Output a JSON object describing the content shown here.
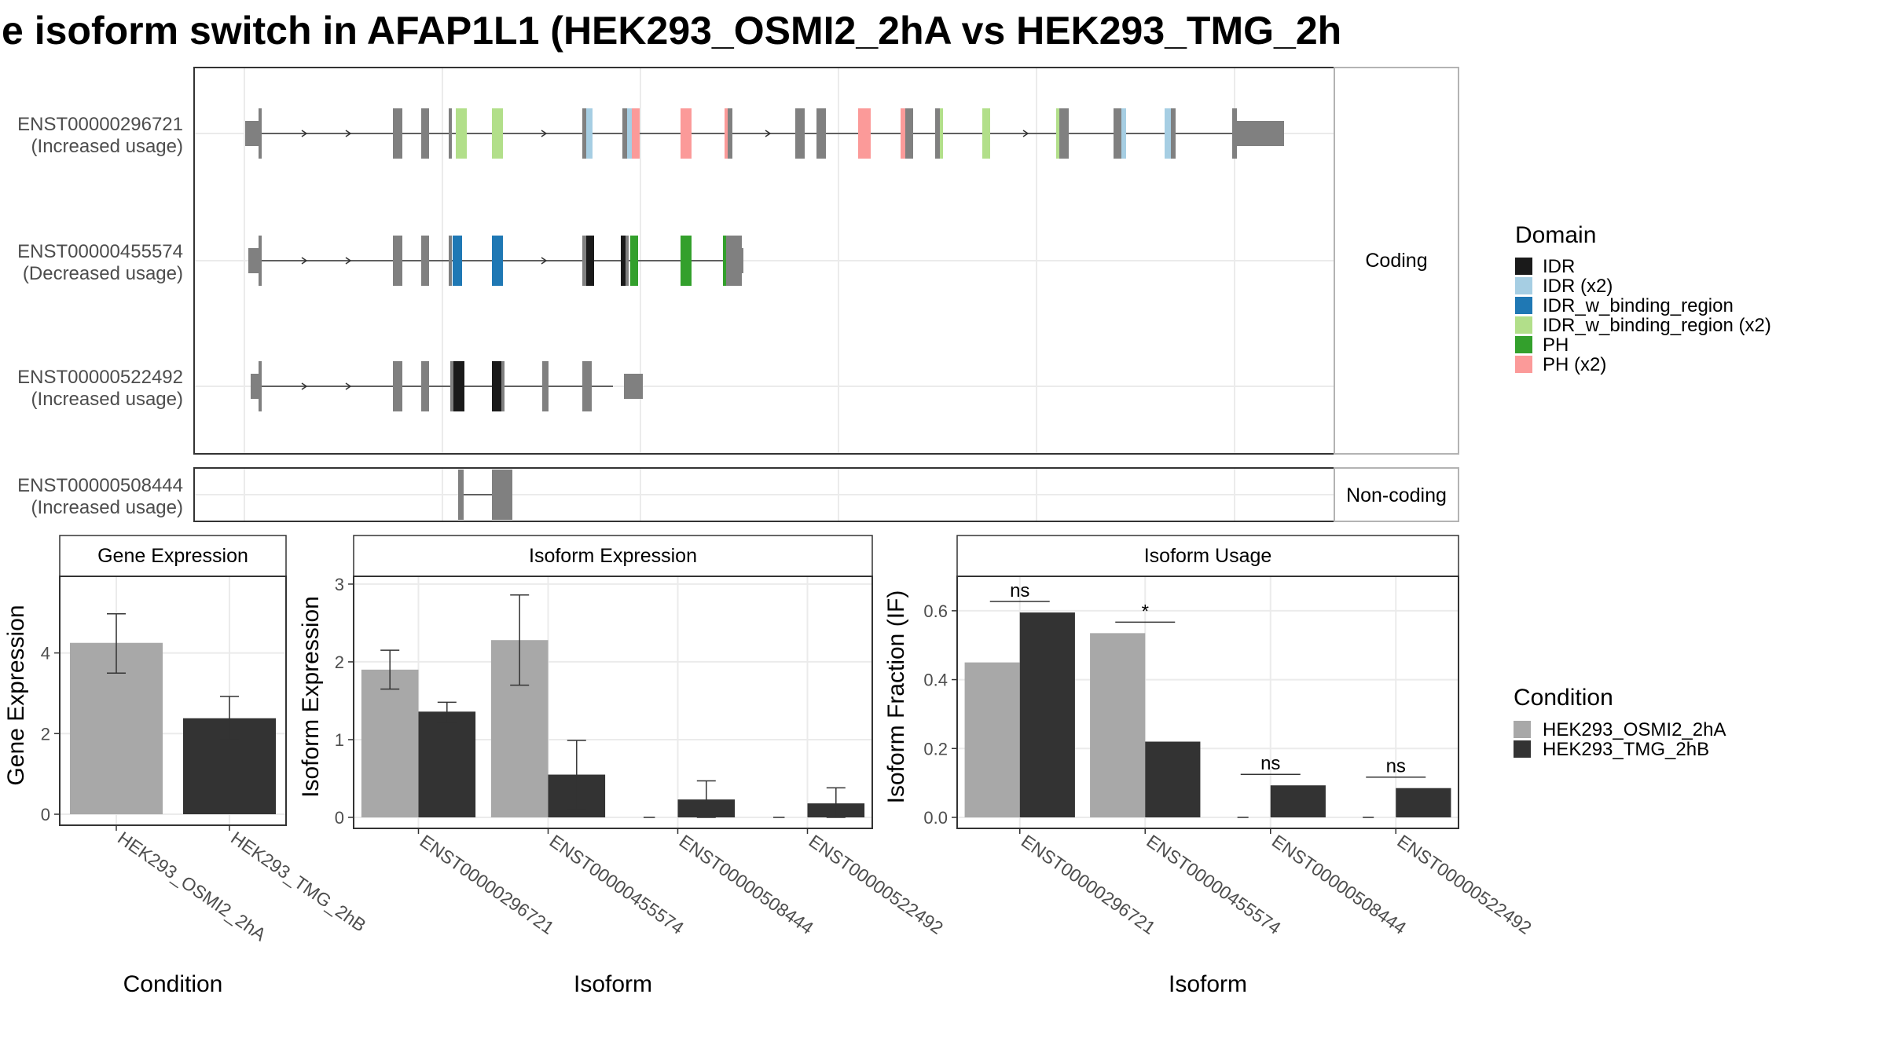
{
  "title": "e isoform switch in AFAP1L1 (HEK293_OSMI2_2hA vs HEK293_TMG_2h",
  "colors": {
    "exon": "#808080",
    "IDR": "#1a1a1a",
    "IDR (x2)": "#a6cee3",
    "IDR_w_binding_region": "#1f78b4",
    "IDR_w_binding_region (x2)": "#b2df8a",
    "PH": "#33a02c",
    "PH (x2)": "#fb9a99",
    "condA": "#a8a8a8",
    "condB": "#333333",
    "panel_border": "#333333",
    "strip_bg": "#ffffff",
    "grid": "#ebebeb"
  },
  "structure": {
    "coding_strip": "Coding",
    "noncoding_strip": "Non-coding",
    "isoforms": [
      {
        "id": "ENST00000296721",
        "usage": "(Increased usage)",
        "group": "Coding"
      },
      {
        "id": "ENST00000455574",
        "usage": "(Decreased usage)",
        "group": "Coding"
      },
      {
        "id": "ENST00000522492",
        "usage": "(Increased usage)",
        "group": "Coding"
      },
      {
        "id": "ENST00000508444",
        "usage": "(Increased usage)",
        "group": "Non-coding"
      }
    ],
    "legend": {
      "title": "Domain",
      "items": [
        "IDR",
        "IDR (x2)",
        "IDR_w_binding_region",
        "IDR_w_binding_region (x2)",
        "PH",
        "PH (x2)"
      ]
    }
  },
  "chart_data": [
    {
      "type": "bar",
      "strip": "Gene Expression",
      "xlabel": "Condition",
      "ylabel": "Gene Expression",
      "ylim": [
        0,
        5.9
      ],
      "yticks": [
        0,
        2,
        4
      ],
      "categories": [
        "HEK293_OSMI2_2hA",
        "HEK293_TMG_2hB"
      ],
      "values": [
        4.25,
        2.38
      ],
      "error_low": [
        3.5,
        1.85
      ],
      "error_high": [
        4.97,
        2.92
      ]
    },
    {
      "type": "bar",
      "strip": "Isoform Expression",
      "xlabel": "Isoform",
      "ylabel": "Isoform Expression",
      "ylim": [
        0,
        3.1
      ],
      "yticks": [
        0,
        1,
        2,
        3
      ],
      "categories": [
        "ENST00000296721",
        "ENST00000455574",
        "ENST00000508444",
        "ENST00000522492"
      ],
      "series": [
        {
          "name": "HEK293_OSMI2_2hA",
          "values": [
            1.9,
            2.28,
            0.0,
            0.0
          ],
          "error_low": [
            1.65,
            1.7,
            0.0,
            0.0
          ],
          "error_high": [
            2.15,
            2.86,
            0.0,
            0.0
          ]
        },
        {
          "name": "HEK293_TMG_2hB",
          "values": [
            1.36,
            0.55,
            0.23,
            0.18
          ],
          "error_low": [
            1.22,
            0.1,
            0.0,
            0.0
          ],
          "error_high": [
            1.48,
            0.99,
            0.47,
            0.38
          ]
        }
      ]
    },
    {
      "type": "bar",
      "strip": "Isoform Usage",
      "xlabel": "Isoform",
      "ylabel": "Isoform Fraction (IF)",
      "ylim": [
        0,
        0.7
      ],
      "yticks": [
        "0.0",
        "0.2",
        "0.4",
        "0.6"
      ],
      "categories": [
        "ENST00000296721",
        "ENST00000455574",
        "ENST00000508444",
        "ENST00000522492"
      ],
      "series": [
        {
          "name": "HEK293_OSMI2_2hA",
          "values": [
            0.45,
            0.535,
            0.0,
            0.0
          ]
        },
        {
          "name": "HEK293_TMG_2hB",
          "values": [
            0.595,
            0.22,
            0.093,
            0.085
          ]
        }
      ],
      "significance": [
        "ns",
        "*",
        "ns",
        "ns"
      ]
    }
  ],
  "condition_legend": {
    "title": "Condition",
    "items": [
      "HEK293_OSMI2_2hA",
      "HEK293_TMG_2hB"
    ]
  }
}
